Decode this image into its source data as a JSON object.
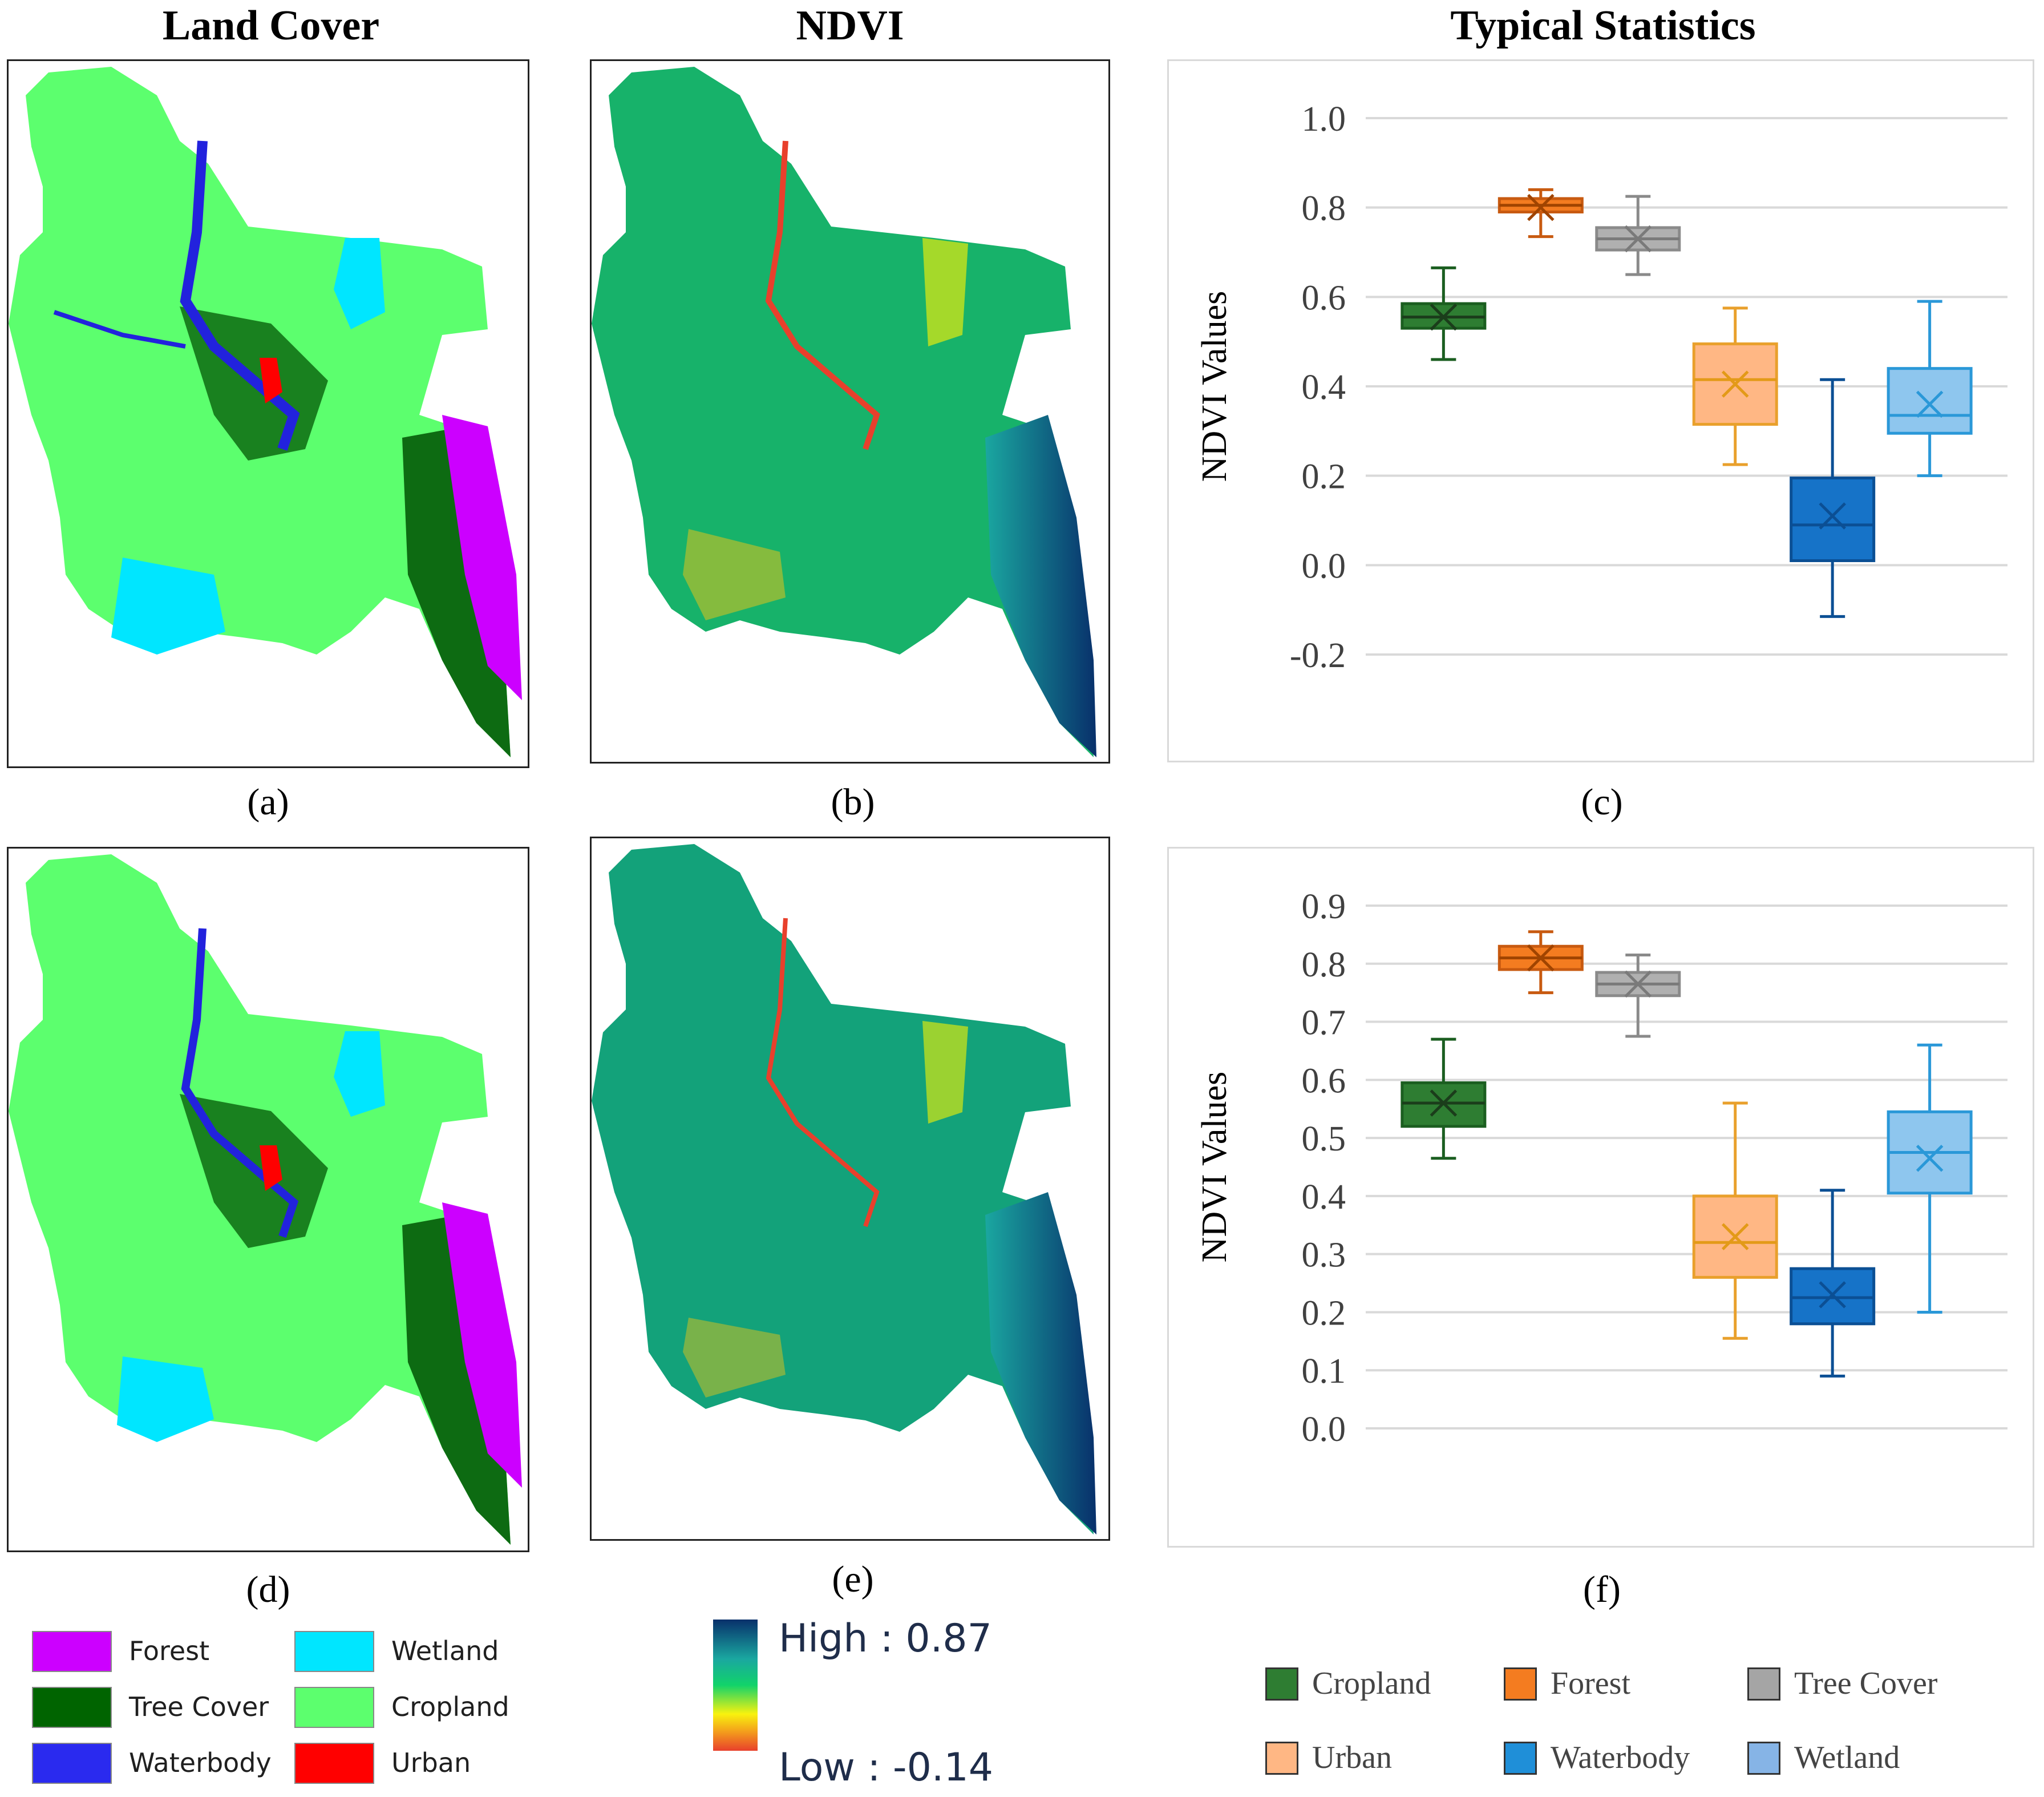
{
  "headers": {
    "land_cover": "Land Cover",
    "ndvi": "NDVI",
    "typical_statistics": "Typical Statistics"
  },
  "panel_labels": {
    "a": "(a)",
    "b": "(b)",
    "c": "(c)",
    "d": "(d)",
    "e": "(e)",
    "f": "(f)"
  },
  "colors": {
    "forest": "#cc00ff",
    "tree_cover": "#006400",
    "waterbody": "#1f1fff",
    "wetland": "#00e6ff",
    "cropland": "#5cff6e",
    "urban": "#ff0000"
  },
  "land_cover_legend": [
    {
      "label": "Forest",
      "color": "#cc00ff"
    },
    {
      "label": "Wetland",
      "color": "#00e6ff"
    },
    {
      "label": "Tree Cover",
      "color": "#006400"
    },
    {
      "label": "Cropland",
      "color": "#5cff6e"
    },
    {
      "label": "Waterbody",
      "color": "#2a2aef"
    },
    {
      "label": "Urban",
      "color": "#ff0000"
    }
  ],
  "ndvi_legend": {
    "high": "High : 0.87",
    "low": "Low : -0.14"
  },
  "stat_legend": [
    {
      "label": "Cropland",
      "color": "#2e7d32"
    },
    {
      "label": "Forest",
      "color": "#f47c20"
    },
    {
      "label": "Tree Cover",
      "color": "#a5a5a5"
    },
    {
      "label": "Urban",
      "color": "#ffb784"
    },
    {
      "label": "Waterbody",
      "color": "#1f8fd8"
    },
    {
      "label": "Wetland",
      "color": "#86b4e6"
    }
  ],
  "chart_data": [
    {
      "type": "box",
      "panel": "c",
      "ylabel": "NDVI Values",
      "ylim": [
        -0.2,
        1.0
      ],
      "yticks": [
        "-0.2",
        "0.0",
        "0.2",
        "0.4",
        "0.6",
        "0.8",
        "1.0"
      ],
      "grid": true,
      "series": [
        {
          "name": "Cropland",
          "min": 0.46,
          "q1": 0.53,
          "median": 0.555,
          "q3": 0.585,
          "max": 0.665,
          "mean": 0.555,
          "fill": "#2e7d32",
          "stroke": "#1b5e20",
          "mark": "#1b3d1b"
        },
        {
          "name": "Forest",
          "min": 0.735,
          "q1": 0.79,
          "median": 0.805,
          "q3": 0.82,
          "max": 0.84,
          "mean": 0.8,
          "fill": "#f47c20",
          "stroke": "#c85a10",
          "mark": "#a04400"
        },
        {
          "name": "Tree Cover",
          "min": 0.65,
          "q1": 0.705,
          "median": 0.73,
          "q3": 0.755,
          "max": 0.825,
          "mean": 0.73,
          "fill": "#b0b0b0",
          "stroke": "#8a8a8a",
          "mark": "#7a7a7a"
        },
        {
          "name": "Urban",
          "min": 0.225,
          "q1": 0.315,
          "median": 0.415,
          "q3": 0.495,
          "max": 0.575,
          "mean": 0.405,
          "fill": "#ffb784",
          "stroke": "#e9a02c",
          "mark": "#e39a18"
        },
        {
          "name": "Waterbody",
          "min": -0.115,
          "q1": 0.01,
          "median": 0.09,
          "q3": 0.195,
          "max": 0.415,
          "mean": 0.11,
          "fill": "#1673c8",
          "stroke": "#0b4f94",
          "mark": "#0b4f94"
        },
        {
          "name": "Wetland",
          "min": 0.2,
          "q1": 0.295,
          "median": 0.335,
          "q3": 0.44,
          "max": 0.59,
          "mean": 0.36,
          "fill": "#8ec6ee",
          "stroke": "#2a98d8",
          "mark": "#2a98d8"
        }
      ]
    },
    {
      "type": "box",
      "panel": "f",
      "ylabel": "NDVI Values",
      "ylim": [
        0.0,
        0.9
      ],
      "yticks": [
        "0.0",
        "0.1",
        "0.2",
        "0.3",
        "0.4",
        "0.5",
        "0.6",
        "0.7",
        "0.8",
        "0.9"
      ],
      "grid": true,
      "series": [
        {
          "name": "Cropland",
          "min": 0.465,
          "q1": 0.52,
          "median": 0.56,
          "q3": 0.595,
          "max": 0.67,
          "mean": 0.56,
          "fill": "#2e7d32",
          "stroke": "#1b5e20",
          "mark": "#1b3d1b"
        },
        {
          "name": "Forest",
          "min": 0.75,
          "q1": 0.79,
          "median": 0.81,
          "q3": 0.83,
          "max": 0.855,
          "mean": 0.81,
          "fill": "#f47c20",
          "stroke": "#c85a10",
          "mark": "#a04400"
        },
        {
          "name": "Tree Cover",
          "min": 0.675,
          "q1": 0.745,
          "median": 0.765,
          "q3": 0.785,
          "max": 0.815,
          "mean": 0.765,
          "fill": "#b0b0b0",
          "stroke": "#8a8a8a",
          "mark": "#7a7a7a"
        },
        {
          "name": "Urban",
          "min": 0.155,
          "q1": 0.26,
          "median": 0.32,
          "q3": 0.4,
          "max": 0.56,
          "mean": 0.33,
          "fill": "#ffb784",
          "stroke": "#e9a02c",
          "mark": "#e39a18"
        },
        {
          "name": "Waterbody",
          "min": 0.09,
          "q1": 0.18,
          "median": 0.225,
          "q3": 0.275,
          "max": 0.41,
          "mean": 0.23,
          "fill": "#1673c8",
          "stroke": "#0b4f94",
          "mark": "#0b4f94"
        },
        {
          "name": "Wetland",
          "min": 0.2,
          "q1": 0.405,
          "median": 0.475,
          "q3": 0.545,
          "max": 0.66,
          "mean": 0.465,
          "fill": "#8ec6ee",
          "stroke": "#2a98d8",
          "mark": "#2a98d8"
        }
      ]
    }
  ]
}
